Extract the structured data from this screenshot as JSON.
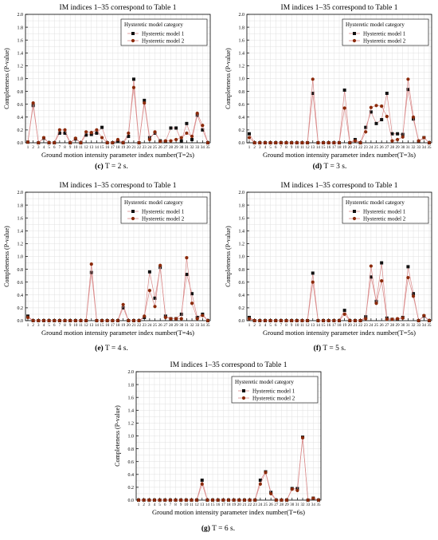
{
  "figure": {
    "panels": [
      {
        "id": "c",
        "caption_letter": "(c)",
        "caption_text": " T = 2 s."
      },
      {
        "id": "d",
        "caption_letter": "(d)",
        "caption_text": " T = 3 s."
      },
      {
        "id": "e",
        "caption_letter": "(e)",
        "caption_text": " T = 4 s."
      },
      {
        "id": "f",
        "caption_letter": "(f)",
        "caption_text": " T = 5 s."
      },
      {
        "id": "g",
        "caption_letter": "(g)",
        "caption_text": " T = 6 s."
      }
    ]
  },
  "colors": {
    "model1_marker": "#111111",
    "model2_marker": "#8b2a0a",
    "line": "#d98a8a",
    "grid": "#e0e0e0"
  },
  "chart_data": [
    {
      "type": "line",
      "title": "IM indices 1–35 correspond to Table 1",
      "xlabel": "Ground motion intensity parameter index number(T=2s)",
      "ylabel": "Completeness (P-value)",
      "legend_title": "Hysteretic model category",
      "legend_position": "top-right",
      "grid": true,
      "ylim": [
        0,
        2.0
      ],
      "yticks": [
        "0.0",
        "0.2",
        "0.4",
        "0.6",
        "0.8",
        "1.0",
        "1.2",
        "1.4",
        "1.6",
        "1.8",
        "2.0"
      ],
      "x": [
        1,
        2,
        3,
        4,
        5,
        6,
        7,
        8,
        9,
        10,
        11,
        12,
        13,
        14,
        15,
        16,
        17,
        18,
        19,
        20,
        21,
        22,
        23,
        24,
        25,
        26,
        27,
        28,
        29,
        30,
        31,
        32,
        33,
        34,
        35
      ],
      "series": [
        {
          "name": "Hysteretic model 1",
          "values": [
            0.01,
            0.58,
            0.0,
            0.07,
            0.0,
            0.0,
            0.15,
            0.15,
            0.0,
            0.06,
            0.0,
            0.12,
            0.13,
            0.15,
            0.24,
            0.0,
            0.0,
            0.03,
            0.0,
            0.1,
            0.99,
            0.0,
            0.66,
            0.08,
            0.15,
            0.03,
            0.02,
            0.23,
            0.23,
            0.03,
            0.3,
            0.05,
            0.43,
            0.2,
            0.0
          ]
        },
        {
          "name": "Hysteretic model 2",
          "values": [
            0.01,
            0.62,
            0.0,
            0.08,
            0.0,
            0.0,
            0.2,
            0.2,
            0.0,
            0.07,
            0.0,
            0.17,
            0.16,
            0.2,
            0.08,
            0.0,
            0.0,
            0.05,
            0.0,
            0.15,
            0.86,
            0.0,
            0.62,
            0.05,
            0.17,
            0.02,
            0.03,
            0.03,
            0.05,
            0.08,
            0.15,
            0.1,
            0.46,
            0.27,
            0.0
          ]
        }
      ]
    },
    {
      "type": "line",
      "title": "IM indices 1–35 correspond to Table 1",
      "xlabel": "Ground motion intensity parameter index number(T=3s)",
      "ylabel": "Completeness (P-value)",
      "legend_title": "Hysteretic model category",
      "legend_position": "top-right",
      "grid": true,
      "ylim": [
        0,
        2.0
      ],
      "yticks": [
        "0.0",
        "0.2",
        "0.4",
        "0.6",
        "0.8",
        "1.0",
        "1.2",
        "1.4",
        "1.6",
        "1.8",
        "2.0"
      ],
      "x": [
        1,
        2,
        3,
        4,
        5,
        6,
        7,
        8,
        9,
        10,
        11,
        12,
        13,
        14,
        15,
        16,
        17,
        18,
        19,
        20,
        21,
        22,
        23,
        24,
        25,
        26,
        27,
        28,
        29,
        30,
        31,
        32,
        33,
        34,
        35
      ],
      "series": [
        {
          "name": "Hysteretic model 1",
          "values": [
            0.14,
            0.0,
            0.0,
            0.0,
            0.0,
            0.0,
            0.0,
            0.0,
            0.0,
            0.0,
            0.0,
            0.0,
            0.77,
            0.0,
            0.0,
            0.0,
            0.0,
            0.0,
            0.82,
            0.0,
            0.05,
            0.0,
            0.24,
            0.48,
            0.3,
            0.36,
            0.77,
            0.14,
            0.14,
            0.13,
            0.83,
            0.37,
            0.02,
            0.08,
            0.0
          ]
        },
        {
          "name": "Hysteretic model 2",
          "values": [
            0.08,
            0.0,
            0.0,
            0.0,
            0.0,
            0.0,
            0.0,
            0.0,
            0.0,
            0.0,
            0.0,
            0.0,
            0.99,
            0.0,
            0.0,
            0.0,
            0.0,
            0.0,
            0.54,
            0.0,
            0.03,
            0.0,
            0.17,
            0.55,
            0.58,
            0.57,
            0.41,
            0.03,
            0.05,
            0.09,
            0.99,
            0.4,
            0.03,
            0.08,
            0.0
          ]
        }
      ]
    },
    {
      "type": "line",
      "title": "IM indices 1–35 correspond to Table 1",
      "xlabel": "Ground motion intensity parameter index number(T=4s)",
      "ylabel": "Completeness (P-value)",
      "legend_title": "Hysteretic model category",
      "legend_position": "top-right",
      "grid": true,
      "ylim": [
        0,
        2.0
      ],
      "yticks": [
        "0.0",
        "0.2",
        "0.4",
        "0.6",
        "0.8",
        "1.0",
        "1.2",
        "1.4",
        "1.6",
        "1.8",
        "2.0"
      ],
      "x": [
        1,
        2,
        3,
        4,
        5,
        6,
        7,
        8,
        9,
        10,
        11,
        12,
        13,
        14,
        15,
        16,
        17,
        18,
        19,
        20,
        21,
        22,
        23,
        24,
        25,
        26,
        27,
        28,
        29,
        30,
        31,
        32,
        33,
        34,
        35
      ],
      "series": [
        {
          "name": "Hysteretic model 1",
          "values": [
            0.07,
            0.0,
            0.0,
            0.0,
            0.0,
            0.0,
            0.0,
            0.0,
            0.0,
            0.0,
            0.0,
            0.0,
            0.75,
            0.0,
            0.0,
            0.0,
            0.0,
            0.0,
            0.2,
            0.0,
            0.0,
            0.0,
            0.05,
            0.76,
            0.35,
            0.83,
            0.07,
            0.03,
            0.03,
            0.1,
            0.72,
            0.42,
            0.05,
            0.1,
            0.0
          ]
        },
        {
          "name": "Hysteretic model 2",
          "values": [
            0.05,
            0.0,
            0.0,
            0.0,
            0.0,
            0.0,
            0.0,
            0.0,
            0.0,
            0.0,
            0.0,
            0.0,
            0.88,
            0.0,
            0.0,
            0.0,
            0.0,
            0.0,
            0.25,
            0.0,
            0.0,
            0.0,
            0.07,
            0.47,
            0.22,
            0.86,
            0.05,
            0.03,
            0.03,
            0.03,
            0.98,
            0.27,
            0.03,
            0.08,
            0.0
          ]
        }
      ]
    },
    {
      "type": "line",
      "title": "IM indices 1–35 correspond to Table 1",
      "xlabel": "Ground motion intensity parameter index number(T=5s)",
      "ylabel": "Completeness (P-value)",
      "legend_title": "Hysteretic model category",
      "legend_position": "top-right",
      "grid": true,
      "ylim": [
        0,
        2.0
      ],
      "yticks": [
        "0.0",
        "0.2",
        "0.4",
        "0.6",
        "0.8",
        "1.0",
        "1.2",
        "1.4",
        "1.6",
        "1.8",
        "2.0"
      ],
      "x": [
        1,
        2,
        3,
        4,
        5,
        6,
        7,
        8,
        9,
        10,
        11,
        12,
        13,
        14,
        15,
        16,
        17,
        18,
        19,
        20,
        21,
        22,
        23,
        24,
        25,
        26,
        27,
        28,
        29,
        30,
        31,
        32,
        33,
        34,
        35
      ],
      "series": [
        {
          "name": "Hysteretic model 1",
          "values": [
            0.05,
            0.0,
            0.0,
            0.0,
            0.0,
            0.0,
            0.0,
            0.0,
            0.0,
            0.0,
            0.0,
            0.0,
            0.74,
            0.0,
            0.0,
            0.0,
            0.0,
            0.0,
            0.16,
            0.0,
            0.0,
            0.0,
            0.06,
            0.68,
            0.3,
            0.9,
            0.04,
            0.02,
            0.02,
            0.05,
            0.84,
            0.42,
            0.0,
            0.07,
            0.0
          ]
        },
        {
          "name": "Hysteretic model 2",
          "values": [
            0.03,
            0.0,
            0.0,
            0.0,
            0.0,
            0.0,
            0.0,
            0.0,
            0.0,
            0.0,
            0.0,
            0.0,
            0.6,
            0.0,
            0.0,
            0.0,
            0.0,
            0.0,
            0.1,
            0.0,
            0.0,
            0.0,
            0.03,
            0.85,
            0.27,
            0.62,
            0.02,
            0.02,
            0.03,
            0.04,
            0.67,
            0.38,
            0.0,
            0.08,
            0.0
          ]
        }
      ]
    },
    {
      "type": "line",
      "title": "IM indices 1–35 correspond to Table 1",
      "xlabel": "Ground motion intensity parameter index number(T=6s)",
      "ylabel": "Completeness (P-value)",
      "legend_title": "Hysteretic model category",
      "legend_position": "top-right",
      "grid": true,
      "ylim": [
        0,
        2.0
      ],
      "yticks": [
        "0.0",
        "0.2",
        "0.4",
        "0.6",
        "0.8",
        "1.0",
        "1.2",
        "1.4",
        "1.6",
        "1.8",
        "2.0"
      ],
      "x": [
        1,
        2,
        3,
        4,
        5,
        6,
        7,
        8,
        9,
        10,
        11,
        12,
        13,
        14,
        15,
        16,
        17,
        18,
        19,
        20,
        21,
        22,
        23,
        24,
        25,
        26,
        27,
        28,
        29,
        30,
        31,
        32,
        33,
        34,
        35
      ],
      "series": [
        {
          "name": "Hysteretic model 1",
          "values": [
            0.0,
            0.0,
            0.0,
            0.0,
            0.0,
            0.0,
            0.0,
            0.0,
            0.0,
            0.0,
            0.0,
            0.0,
            0.31,
            0.0,
            0.0,
            0.0,
            0.0,
            0.0,
            0.0,
            0.0,
            0.0,
            0.0,
            0.0,
            0.31,
            0.44,
            0.12,
            0.0,
            0.0,
            0.0,
            0.18,
            0.18,
            0.98,
            0.0,
            0.03,
            0.0
          ]
        },
        {
          "name": "Hysteretic model 2",
          "values": [
            0.0,
            0.0,
            0.0,
            0.0,
            0.0,
            0.0,
            0.0,
            0.0,
            0.0,
            0.0,
            0.0,
            0.0,
            0.25,
            0.0,
            0.0,
            0.0,
            0.0,
            0.0,
            0.0,
            0.0,
            0.0,
            0.0,
            0.0,
            0.25,
            0.43,
            0.1,
            0.0,
            0.0,
            0.0,
            0.17,
            0.15,
            0.97,
            0.0,
            0.03,
            0.0
          ]
        }
      ]
    }
  ]
}
